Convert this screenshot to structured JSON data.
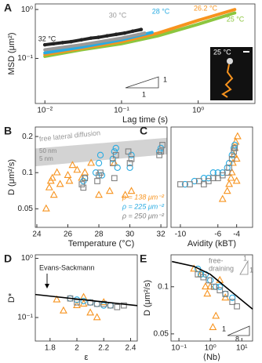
{
  "chart_data": [
    {
      "type": "line",
      "panel": "A",
      "xlabel": "Lag time (s)",
      "ylabel": "MSD (μm²)",
      "xlog": true,
      "ylog": true,
      "xlim": [
        0.0075,
        5.5
      ],
      "ylim": [
        0.012,
        1.3
      ],
      "xticks": [
        {
          "value": 0.01,
          "label": "10⁻²"
        },
        {
          "value": 0.1,
          "label": "10⁻¹"
        },
        {
          "value": 1,
          "label": "10⁰"
        }
      ],
      "yticks": [
        {
          "value": 0.1,
          "label": "10⁻¹"
        },
        {
          "value": 1,
          "label": "10⁰"
        }
      ],
      "series": [
        {
          "name": "25 °C",
          "color": "#8cc63f",
          "x": [
            0.01,
            0.03,
            0.1,
            0.3,
            1,
            3
          ],
          "values": [
            0.11,
            0.15,
            0.2,
            0.29,
            0.5,
            0.85
          ]
        },
        {
          "name": "26.2 °C",
          "color": "#f7931e",
          "x": [
            0.01,
            0.03,
            0.1,
            0.3,
            1,
            3
          ],
          "values": [
            0.12,
            0.16,
            0.22,
            0.33,
            0.6,
            1.0
          ]
        },
        {
          "name": "28 °C",
          "color": "#29abe2",
          "x": [
            0.01,
            0.03,
            0.1,
            0.25
          ],
          "values": [
            0.13,
            0.17,
            0.24,
            0.34
          ]
        },
        {
          "name": "30 °C",
          "color": "#999999",
          "x": [
            0.01,
            0.03,
            0.1,
            0.2
          ],
          "values": [
            0.15,
            0.19,
            0.26,
            0.33
          ]
        },
        {
          "name": "32 °C",
          "color": "#222222",
          "markers": true,
          "x": [
            0.01,
            0.013,
            0.017,
            0.022,
            0.03,
            0.04,
            0.05,
            0.065,
            0.085,
            0.11,
            0.14,
            0.18
          ],
          "values": [
            0.19,
            0.2,
            0.21,
            0.22,
            0.24,
            0.26,
            0.27,
            0.29,
            0.31,
            0.33,
            0.36,
            0.39
          ]
        }
      ],
      "slope": {
        "rise": 1,
        "run": 1
      },
      "inset_label": "25 °C"
    },
    {
      "type": "scatter",
      "panel": "B",
      "xlabel": "Temperature (°C)",
      "ylabel": "D (μm²/s)",
      "xlog": false,
      "ylog": true,
      "xlim": [
        23.9,
        32.4
      ],
      "ylim": [
        0.035,
        0.24
      ],
      "xticks": [
        24,
        26,
        28,
        30,
        32
      ],
      "yticks": [
        0.05,
        0.1,
        0.2
      ],
      "band": {
        "x": [
          23.9,
          32.4
        ],
        "lower": [
          0.113,
          0.142
        ],
        "upper": [
          0.159,
          0.195
        ],
        "color": "#d3d3d3"
      },
      "annotations": [
        "free lateral diffusion",
        "50 nm",
        "5 nm"
      ],
      "series": [
        {
          "name": "ρ = 138 μm⁻²",
          "color": "#f7931e",
          "marker": "triangle",
          "x": [
            24.6,
            24.8,
            24.9,
            25.0,
            25.1,
            25.3,
            25.5,
            26.0,
            26.1,
            26.3,
            26.6,
            26.9,
            27.1,
            27.5,
            28.0,
            28.7,
            29.0,
            29.7,
            30.1
          ],
          "values": [
            0.05,
            0.075,
            0.085,
            0.09,
            0.065,
            0.1,
            0.08,
            0.095,
            0.085,
            0.115,
            0.105,
            0.09,
            0.1,
            0.12,
            0.065,
            0.07,
            0.12,
            0.065,
            0.07
          ]
        },
        {
          "name": "ρ = 225 μm⁻²",
          "color": "#29abe2",
          "marker": "circle",
          "x": [
            27.0,
            27.1,
            27.8,
            28.0,
            28.1,
            28.2,
            28.9,
            29.0,
            29.1,
            29.2,
            30.0,
            30.1,
            31.9,
            32.0
          ],
          "values": [
            0.085,
            0.09,
            0.1,
            0.12,
            0.14,
            0.095,
            0.13,
            0.15,
            0.16,
            0.11,
            0.11,
            0.14,
            0.15,
            0.16
          ]
        },
        {
          "name": "ρ = 250 μm⁻²",
          "color": "#808080",
          "marker": "square",
          "x": [
            26.9,
            27.0,
            27.1,
            27.9,
            28.0,
            28.1,
            28.9,
            29.1,
            29.0,
            30.0,
            30.1,
            29.9,
            31.9,
            32.0,
            32.1
          ],
          "values": [
            0.08,
            0.075,
            0.09,
            0.085,
            0.095,
            0.1,
            0.12,
            0.14,
            0.09,
            0.12,
            0.13,
            0.15,
            0.14,
            0.15,
            0.17
          ]
        }
      ]
    },
    {
      "type": "scatter",
      "panel": "C",
      "xlabel": "Avidity (kBT)",
      "xlog": false,
      "ylog": true,
      "xlim": [
        -11,
        -2.3
      ],
      "ylim": [
        0.035,
        0.24
      ],
      "xticks": [
        -10,
        -6,
        -4
      ],
      "series": [
        {
          "color": "#f7931e",
          "marker": "triangle",
          "x": [
            -5.5,
            -5,
            -4.8,
            -4.6,
            -4.5,
            -4.4,
            -4.3,
            -4.2,
            -4.1,
            -4.0,
            -4.0,
            -3.9
          ],
          "values": [
            0.06,
            0.07,
            0.08,
            0.09,
            0.1,
            0.12,
            0.14,
            0.16,
            0.18,
            0.13,
            0.085,
            0.2
          ]
        },
        {
          "color": "#29abe2",
          "marker": "circle",
          "x": [
            -9.5,
            -8.5,
            -7.5,
            -7,
            -6.5,
            -6,
            -5.5,
            -5,
            -4.8,
            -4.5,
            -4.3,
            -4.2
          ],
          "values": [
            0.08,
            0.085,
            0.09,
            0.09,
            0.1,
            0.1,
            0.1,
            0.11,
            0.12,
            0.14,
            0.16,
            0.17
          ]
        },
        {
          "color": "#808080",
          "marker": "square",
          "x": [
            -10,
            -9,
            -8,
            -7.5,
            -7,
            -6.5,
            -6,
            -5.5,
            -5,
            -4.8,
            -4.5,
            -4.3,
            -4.2
          ],
          "values": [
            0.08,
            0.08,
            0.085,
            0.08,
            0.085,
            0.09,
            0.09,
            0.095,
            0.1,
            0.11,
            0.13,
            0.15,
            0.16
          ]
        }
      ]
    },
    {
      "type": "scatter",
      "panel": "D",
      "xlabel": "ε",
      "ylabel": "D*",
      "xlog": false,
      "ylog": true,
      "xlim": [
        1.69,
        2.45
      ],
      "ylim": [
        0.04,
        1.15
      ],
      "xticks": [
        1.8,
        2,
        2.2,
        2.4
      ],
      "yticks": [
        {
          "value": 0.1,
          "label": "10⁻¹"
        },
        {
          "value": 1,
          "label": "10⁰"
        }
      ],
      "fit": {
        "x": [
          1.69,
          2.45
        ],
        "y": [
          0.245,
          0.159
        ],
        "color": "#000000"
      },
      "annotations": [
        "Evans-Sackmann"
      ],
      "series": [
        {
          "color": "#f7931e",
          "marker": "triangle",
          "x": [
            1.85,
            1.9,
            2.0,
            2.05,
            2.1,
            2.15,
            2.2,
            2.05
          ],
          "values": [
            0.2,
            0.13,
            0.16,
            0.17,
            0.12,
            0.1,
            0.18,
            0.22
          ]
        },
        {
          "color": "#29abe2",
          "marker": "circle",
          "x": [
            1.95,
            2.0,
            2.05,
            2.1,
            2.15,
            2.2,
            2.25
          ],
          "values": [
            0.21,
            0.2,
            0.19,
            0.18,
            0.17,
            0.16,
            0.16
          ]
        },
        {
          "color": "#808080",
          "marker": "square",
          "x": [
            1.95,
            2.0,
            2.1,
            2.15,
            2.2,
            2.25,
            2.3,
            2.35
          ],
          "values": [
            0.21,
            0.18,
            0.18,
            0.17,
            0.17,
            0.16,
            0.15,
            0.16
          ]
        }
      ]
    },
    {
      "type": "scatter",
      "panel": "E",
      "xlabel": "⟨Nb⟩",
      "ylabel": "D (μm²/s)",
      "xlog": true,
      "ylog": true,
      "xlim": [
        0.056,
        22
      ],
      "ylim": [
        0.045,
        0.16
      ],
      "xticks": [
        {
          "value": 0.1,
          "label": "10⁻¹"
        },
        {
          "value": 1,
          "label": "10⁰"
        },
        {
          "value": 10,
          "label": "10¹"
        }
      ],
      "yticks": [
        0.05,
        0.1
      ],
      "fit": {
        "x": [
          0.06,
          0.3,
          1,
          3,
          10,
          22
        ],
        "y": [
          0.145,
          0.135,
          0.12,
          0.1,
          0.082,
          0.072
        ],
        "color": "#000000"
      },
      "annotations": [
        "free-",
        "draining"
      ],
      "slopes": [
        {
          "rise": 1,
          "run": 1
        },
        {
          "rise": 1,
          "run": 8
        }
      ],
      "series": [
        {
          "color": "#f7931e",
          "marker": "triangle",
          "x": [
            0.3,
            0.5,
            0.7,
            0.8,
            1,
            1.2,
            1.5,
            2,
            3
          ],
          "values": [
            0.13,
            0.12,
            0.1,
            0.09,
            0.1,
            0.055,
            0.065,
            0.11,
            0.085
          ]
        },
        {
          "color": "#29abe2",
          "marker": "circle",
          "x": [
            0.4,
            0.5,
            0.7,
            1,
            1.5,
            2,
            3,
            5
          ],
          "values": [
            0.13,
            0.12,
            0.12,
            0.11,
            0.1,
            0.1,
            0.09,
            0.085
          ]
        },
        {
          "color": "#808080",
          "marker": "square",
          "x": [
            0.4,
            0.6,
            0.9,
            1.3,
            2,
            3,
            5,
            7
          ],
          "values": [
            0.12,
            0.115,
            0.11,
            0.1,
            0.095,
            0.09,
            0.08,
            0.075
          ]
        }
      ]
    }
  ]
}
